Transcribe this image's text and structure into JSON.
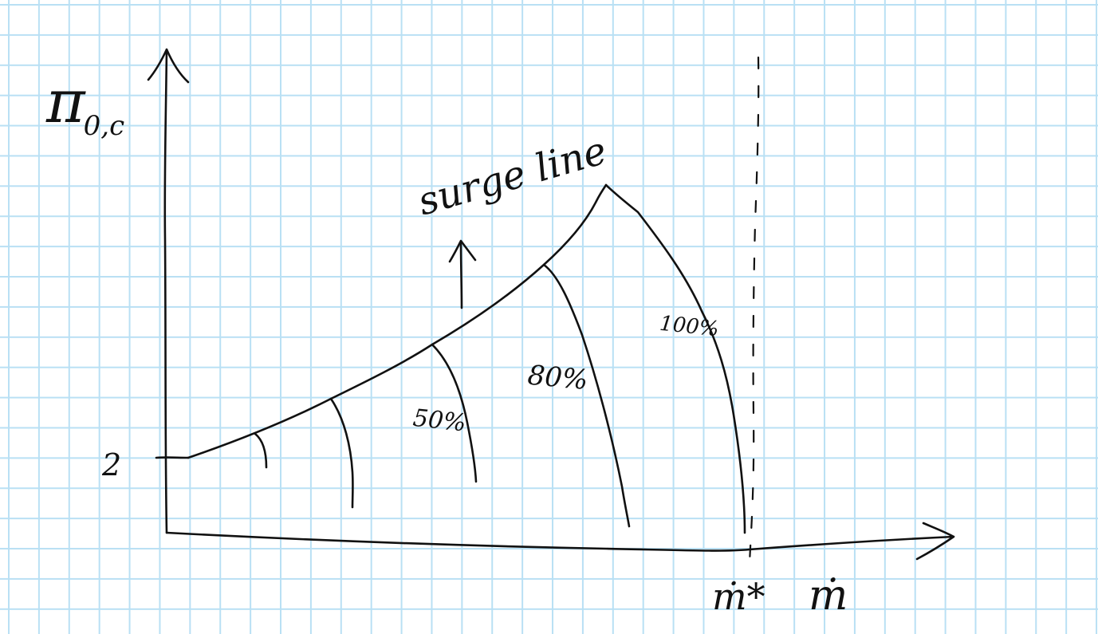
{
  "axes": {
    "y_label": "π",
    "y_subscript": "0,c",
    "y_tick_label": "2",
    "x_label": "ṁ",
    "x_marker_label": "ṁ*"
  },
  "annotations": {
    "surge_line_label": "surge line"
  },
  "speed_lines": [
    {
      "label": ""
    },
    {
      "label": ""
    },
    {
      "label": "50%"
    },
    {
      "label": "80%"
    },
    {
      "label": "100%"
    }
  ],
  "colors": {
    "grid": "#b9e0f4",
    "ink": "#111111"
  }
}
